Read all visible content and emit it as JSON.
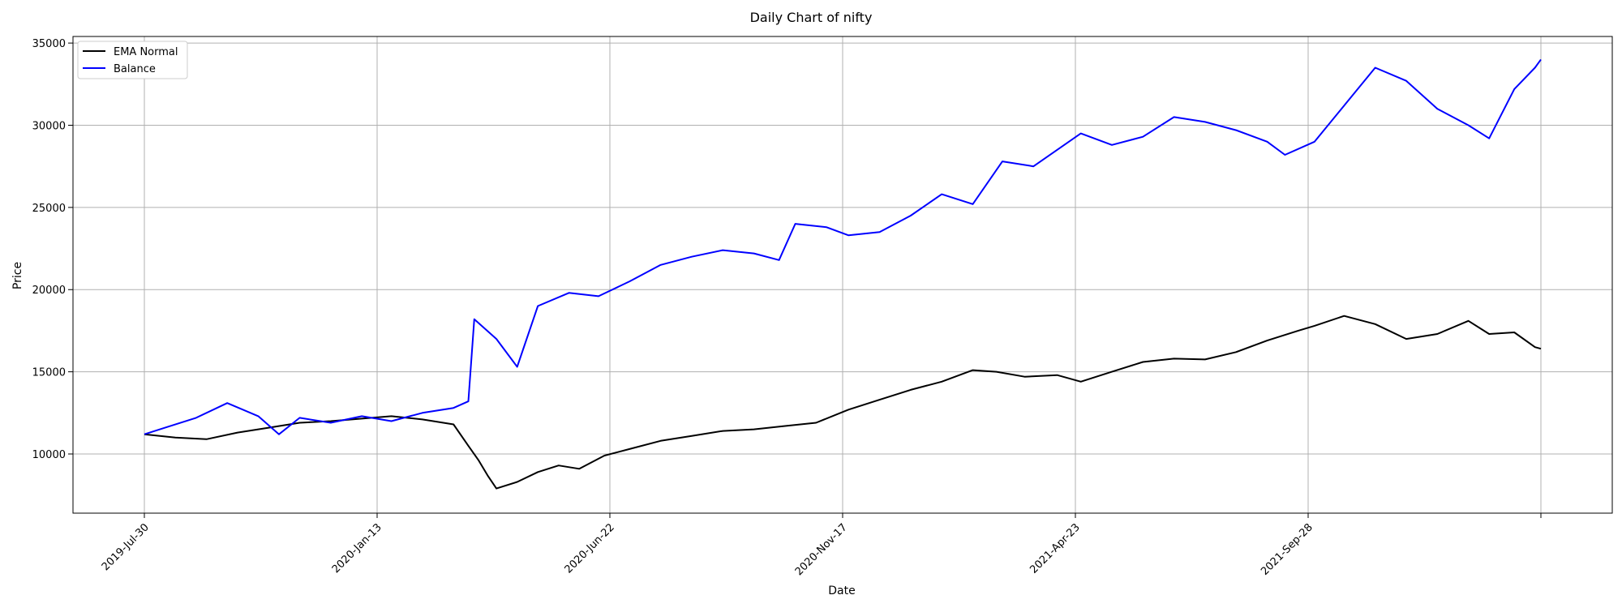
{
  "chart_data": {
    "type": "line",
    "title": "Daily Chart of nifty",
    "xlabel": "Date",
    "ylabel": "Price",
    "x_tick_labels": [
      "2019-Jul-30",
      "2020-Jan-13",
      "2020-Jun-22",
      "2020-Nov-17",
      "2021-Apr-23",
      "2021-Sep-28",
      ""
    ],
    "y_ticks": [
      10000,
      15000,
      20000,
      25000,
      30000,
      35000
    ],
    "ylim": [
      6400,
      35400
    ],
    "xlim": [
      "2019-Jul-30",
      "2022-Feb-28"
    ],
    "grid": true,
    "legend": "top-left",
    "series": [
      {
        "name": "EMA Normal",
        "color": "#000000",
        "points": [
          [
            "2019-Jul-30",
            11200
          ],
          [
            "2019-Aug-20",
            11000
          ],
          [
            "2019-Sep-10",
            10900
          ],
          [
            "2019-Oct-01",
            11300
          ],
          [
            "2019-Oct-22",
            11600
          ],
          [
            "2019-Nov-12",
            11900
          ],
          [
            "2019-Dec-03",
            12000
          ],
          [
            "2019-Dec-24",
            12150
          ],
          [
            "2020-Jan-13",
            12300
          ],
          [
            "2020-Feb-03",
            12100
          ],
          [
            "2020-Feb-24",
            11800
          ],
          [
            "2020-Mar-05",
            10500
          ],
          [
            "2020-Mar-12",
            9600
          ],
          [
            "2020-Mar-18",
            8700
          ],
          [
            "2020-Mar-24",
            7900
          ],
          [
            "2020-Apr-07",
            8300
          ],
          [
            "2020-Apr-21",
            8900
          ],
          [
            "2020-May-05",
            9300
          ],
          [
            "2020-May-19",
            9100
          ],
          [
            "2020-Jun-05",
            9900
          ],
          [
            "2020-Jun-22",
            10300
          ],
          [
            "2020-Jul-13",
            10800
          ],
          [
            "2020-Aug-03",
            11100
          ],
          [
            "2020-Aug-24",
            11400
          ],
          [
            "2020-Sep-14",
            11500
          ],
          [
            "2020-Oct-05",
            11700
          ],
          [
            "2020-Oct-26",
            11900
          ],
          [
            "2020-Nov-17",
            12700
          ],
          [
            "2020-Dec-08",
            13300
          ],
          [
            "2020-Dec-29",
            13900
          ],
          [
            "2021-Jan-19",
            14400
          ],
          [
            "2021-Feb-09",
            15100
          ],
          [
            "2021-Feb-25",
            15000
          ],
          [
            "2021-Mar-16",
            14700
          ],
          [
            "2021-Apr-07",
            14800
          ],
          [
            "2021-Apr-23",
            14400
          ],
          [
            "2021-May-14",
            15000
          ],
          [
            "2021-Jun-04",
            15600
          ],
          [
            "2021-Jun-25",
            15800
          ],
          [
            "2021-Jul-16",
            15750
          ],
          [
            "2021-Aug-06",
            16200
          ],
          [
            "2021-Aug-27",
            16900
          ],
          [
            "2021-Sep-17",
            17500
          ],
          [
            "2021-Sep-28",
            17800
          ],
          [
            "2021-Oct-18",
            18400
          ],
          [
            "2021-Nov-08",
            17900
          ],
          [
            "2021-Nov-29",
            17000
          ],
          [
            "2021-Dec-20",
            17300
          ],
          [
            "2022-Jan-10",
            18100
          ],
          [
            "2022-Jan-24",
            17300
          ],
          [
            "2022-Feb-10",
            17400
          ],
          [
            "2022-Feb-24",
            16500
          ],
          [
            "2022-Feb-28",
            16400
          ]
        ]
      },
      {
        "name": "Balance",
        "color": "#0000ff",
        "points": [
          [
            "2019-Jul-30",
            11200
          ],
          [
            "2019-Aug-13",
            11600
          ],
          [
            "2019-Sep-03",
            12200
          ],
          [
            "2019-Sep-24",
            13100
          ],
          [
            "2019-Oct-15",
            12300
          ],
          [
            "2019-Oct-29",
            11200
          ],
          [
            "2019-Nov-12",
            12200
          ],
          [
            "2019-Dec-03",
            11900
          ],
          [
            "2019-Dec-24",
            12300
          ],
          [
            "2020-Jan-13",
            12000
          ],
          [
            "2020-Feb-03",
            12500
          ],
          [
            "2020-Feb-24",
            12800
          ],
          [
            "2020-Mar-05",
            13200
          ],
          [
            "2020-Mar-09",
            18200
          ],
          [
            "2020-Mar-24",
            17000
          ],
          [
            "2020-Apr-07",
            15300
          ],
          [
            "2020-Apr-21",
            19000
          ],
          [
            "2020-May-12",
            19800
          ],
          [
            "2020-Jun-01",
            19600
          ],
          [
            "2020-Jun-22",
            20500
          ],
          [
            "2020-Jul-13",
            21500
          ],
          [
            "2020-Aug-03",
            22000
          ],
          [
            "2020-Aug-24",
            22400
          ],
          [
            "2020-Sep-14",
            22200
          ],
          [
            "2020-Oct-01",
            21800
          ],
          [
            "2020-Oct-12",
            24000
          ],
          [
            "2020-Nov-02",
            23800
          ],
          [
            "2020-Nov-17",
            23300
          ],
          [
            "2020-Dec-08",
            23500
          ],
          [
            "2020-Dec-29",
            24500
          ],
          [
            "2021-Jan-19",
            25800
          ],
          [
            "2021-Feb-09",
            25200
          ],
          [
            "2021-Mar-01",
            27800
          ],
          [
            "2021-Mar-22",
            27500
          ],
          [
            "2021-Apr-23",
            29500
          ],
          [
            "2021-May-14",
            28800
          ],
          [
            "2021-Jun-04",
            29300
          ],
          [
            "2021-Jun-25",
            30500
          ],
          [
            "2021-Jul-16",
            30200
          ],
          [
            "2021-Aug-06",
            29700
          ],
          [
            "2021-Aug-27",
            29000
          ],
          [
            "2021-Sep-08",
            28200
          ],
          [
            "2021-Sep-28",
            29000
          ],
          [
            "2021-Oct-18",
            31200
          ],
          [
            "2021-Nov-08",
            33500
          ],
          [
            "2021-Nov-29",
            32700
          ],
          [
            "2021-Dec-20",
            31000
          ],
          [
            "2022-Jan-10",
            30000
          ],
          [
            "2022-Jan-24",
            29200
          ],
          [
            "2022-Feb-10",
            32200
          ],
          [
            "2022-Feb-24",
            33500
          ],
          [
            "2022-Feb-28",
            34000
          ]
        ]
      }
    ]
  }
}
